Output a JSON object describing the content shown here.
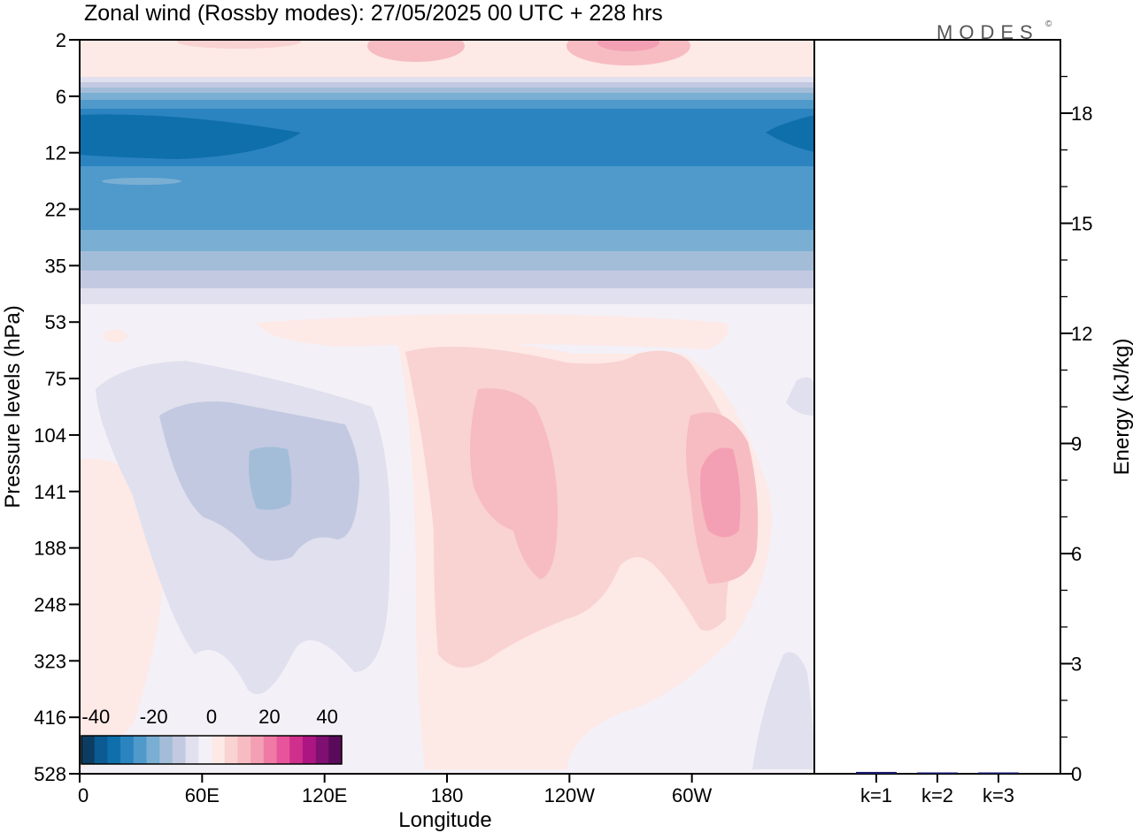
{
  "title": "Zonal wind (Rossby modes):  27/05/2025  00 UTC  + 228 hrs",
  "logo": "MODES",
  "logo_mark": "©",
  "colors": {
    "neg": [
      "#0d3c63",
      "#0b5a91",
      "#0f6fab",
      "#2b84bf",
      "#4f9acb",
      "#7aaed3",
      "#a3bdd8",
      "#c3c9e1",
      "#e0e0ee",
      "#f4f0f7"
    ],
    "pos": [
      "#fde9e6",
      "#f9d2d2",
      "#f6bcc2",
      "#f4a0b4",
      "#f07aa6",
      "#e8549b",
      "#cf2f8d",
      "#ad1582",
      "#800f72",
      "#5a0a5a"
    ]
  },
  "chart_data": [
    {
      "type": "heatmap",
      "title": "Zonal wind (Rossby modes):  27/05/2025  00 UTC  + 228 hrs",
      "xlabel": "Longitude",
      "ylabel": "Pressure levels (hPa)",
      "x_ticks": [
        "0",
        "60E",
        "120E",
        "180",
        "120W",
        "60W"
      ],
      "y_ticks": [
        "2",
        "6",
        "12",
        "22",
        "35",
        "53",
        "75",
        "104",
        "141",
        "188",
        "248",
        "323",
        "416",
        "528"
      ],
      "colorbar": {
        "ticks": [
          "-40",
          "-20",
          "0",
          "20",
          "40"
        ],
        "range": [
          -45,
          45
        ]
      },
      "approx_features": [
        {
          "level": "6-35",
          "value": -30,
          "note": "strong easterly band across all longitudes"
        },
        {
          "level": "2",
          "value": 10,
          "note": "weak westerlies near top"
        },
        {
          "level": "104-188",
          "lon": "60E-120E",
          "value": -10
        },
        {
          "level": "104-248",
          "lon": "180-150W",
          "value": 10
        },
        {
          "level": "104-188",
          "lon": "60W",
          "value": 15
        }
      ]
    },
    {
      "type": "bar",
      "ylabel": "Energy (kJ/kg)",
      "categories": [
        "k=1",
        "k=2",
        "k=3"
      ],
      "values": [
        0.05,
        0.02,
        0.01
      ],
      "ylim": [
        0,
        20
      ],
      "y_ticks": [
        "0",
        "3",
        "6",
        "9",
        "12",
        "15",
        "18"
      ],
      "bar_color": "#1a1a6e"
    }
  ]
}
